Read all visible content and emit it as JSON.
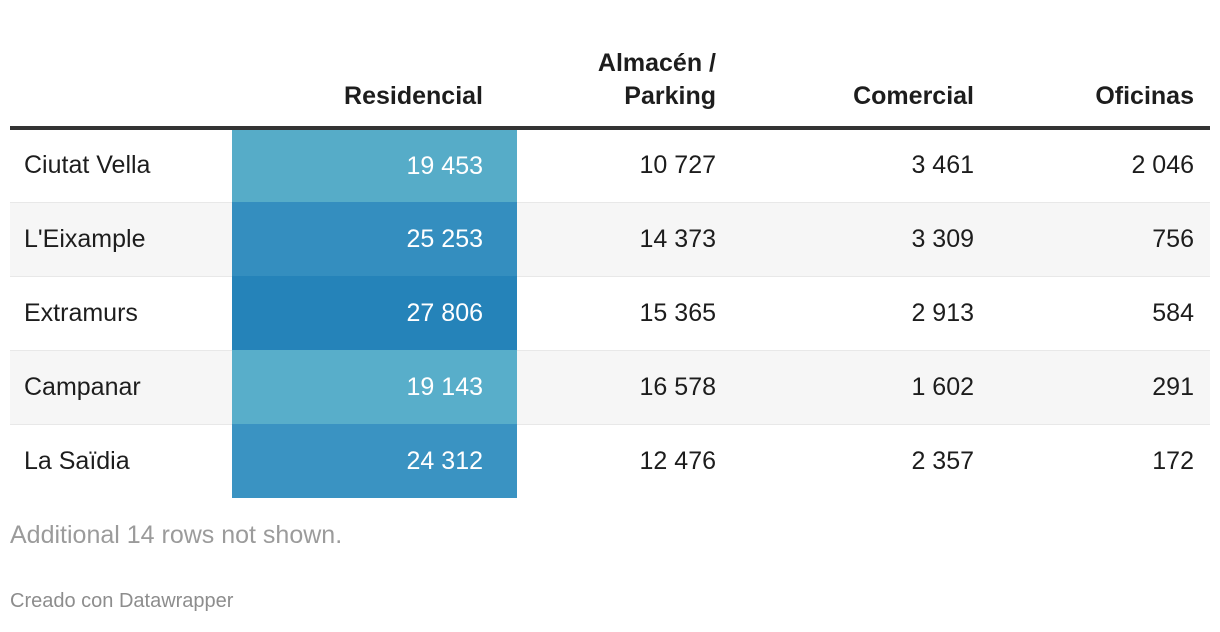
{
  "table": {
    "columns": [
      "",
      "Residencial",
      "Almacén /\nParking",
      "Comercial",
      "Oficinas"
    ],
    "rows": [
      {
        "label": "Ciutat Vella",
        "values": [
          "19 453",
          "10 727",
          "3 461",
          "2 046"
        ],
        "heat_color": "#56acc8"
      },
      {
        "label": "L'Eixample",
        "values": [
          "25 253",
          "14 373",
          "3 309",
          "756"
        ],
        "heat_color": "#348ebf"
      },
      {
        "label": "Extramurs",
        "values": [
          "27 806",
          "15 365",
          "2 913",
          "584"
        ],
        "heat_color": "#2583b9"
      },
      {
        "label": "Campanar",
        "values": [
          "19 143",
          "16 578",
          "1 602",
          "291"
        ],
        "heat_color": "#58aeca"
      },
      {
        "label": "La Saïdia",
        "values": [
          "24 312",
          "12 476",
          "2 357",
          "172"
        ],
        "heat_color": "#3a93c2"
      }
    ],
    "note": "Additional 14 rows not shown."
  },
  "footer": {
    "credit": "Creado con Datawrapper"
  },
  "colors": {
    "header_border": "#333333",
    "row_alt_bg": "#f6f6f6",
    "row_border": "#e8e8e8",
    "heat_text": "#ffffff",
    "note_text": "#9b9b9b",
    "credit_text": "#8d8d8d"
  },
  "chart_data": {
    "type": "table",
    "title": "",
    "columns": [
      "",
      "Residencial",
      "Almacén / Parking",
      "Comercial",
      "Oficinas"
    ],
    "rows": [
      [
        "Ciutat Vella",
        19453,
        10727,
        3461,
        2046
      ],
      [
        "L'Eixample",
        25253,
        14373,
        3309,
        756
      ],
      [
        "Extramurs",
        27806,
        15365,
        2913,
        584
      ],
      [
        "Campanar",
        19143,
        16578,
        1602,
        291
      ],
      [
        "La Saïdia",
        24312,
        12476,
        2357,
        172
      ]
    ],
    "heatmap": {
      "column": "Residencial",
      "cell_colors": [
        "#56acc8",
        "#348ebf",
        "#2583b9",
        "#58aeca",
        "#3a93c2"
      ]
    },
    "note": "Additional 14 rows not shown.",
    "hidden_rows": 14,
    "attribution": "Creado con Datawrapper"
  }
}
